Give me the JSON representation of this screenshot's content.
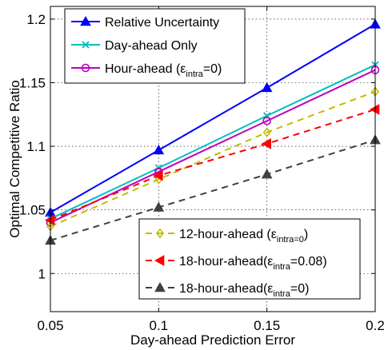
{
  "chart_data": {
    "type": "line",
    "xlabel": "Day-ahead Prediction Error",
    "ylabel": "Optimal Competitive Ratio",
    "xlim": [
      0.05,
      0.2
    ],
    "ylim": [
      0.97,
      1.21
    ],
    "xticks": [
      "0.05",
      "0.1",
      "0.15",
      "0.2"
    ],
    "yticks": [
      "1",
      "1.05",
      "1.1",
      "1.15",
      "1.2"
    ],
    "x": [
      0.05,
      0.1,
      0.15,
      0.2
    ],
    "grid": true,
    "series": [
      {
        "name": "Relative Uncertainty",
        "values": [
          1.048,
          1.097,
          1.146,
          1.196
        ],
        "color": "#0000ff",
        "marker": "triangle-up",
        "style": "solid"
      },
      {
        "name": "Day-ahead Only",
        "values": [
          1.043,
          1.083,
          1.124,
          1.164
        ],
        "color": "#00bfbf",
        "marker": "x",
        "style": "solid"
      },
      {
        "name": "Hour-ahead (ε_intra=0)",
        "values": [
          1.04,
          1.08,
          1.12,
          1.16
        ],
        "color": "#bf00bf",
        "marker": "circle",
        "style": "solid"
      },
      {
        "name": "12-hour-ahead (ε_intra=0)",
        "values": [
          1.037,
          1.074,
          1.111,
          1.143
        ],
        "color": "#bfbf00",
        "marker": "diamond",
        "style": "dashed"
      },
      {
        "name": "18-hour-ahead(ε_intra=0.08)",
        "values": [
          1.042,
          1.077,
          1.102,
          1.129
        ],
        "color": "#ff0000",
        "marker": "triangle-left",
        "style": "dashed"
      },
      {
        "name": "18-hour-ahead(ε_intra=0)",
        "values": [
          1.026,
          1.052,
          1.078,
          1.105
        ],
        "color": "#404040",
        "marker": "triangle-up",
        "style": "dashed"
      }
    ],
    "legend_upper": [
      {
        "main": "Relative Uncertainty",
        "sub": "",
        "tail": ""
      },
      {
        "main": "Day-ahead Only",
        "sub": "",
        "tail": ""
      },
      {
        "main": "Hour-ahead (ε",
        "sub": "intra",
        "tail": "=0)"
      }
    ],
    "legend_lower": [
      {
        "main": "12-hour-ahead (ε",
        "sub": "intra=0",
        "tail": ")"
      },
      {
        "main": "18-hour-ahead(ε",
        "sub": "intra",
        "tail": "=0.08)"
      },
      {
        "main": "18-hour-ahead(ε",
        "sub": "intra",
        "tail": "=0)"
      }
    ]
  }
}
